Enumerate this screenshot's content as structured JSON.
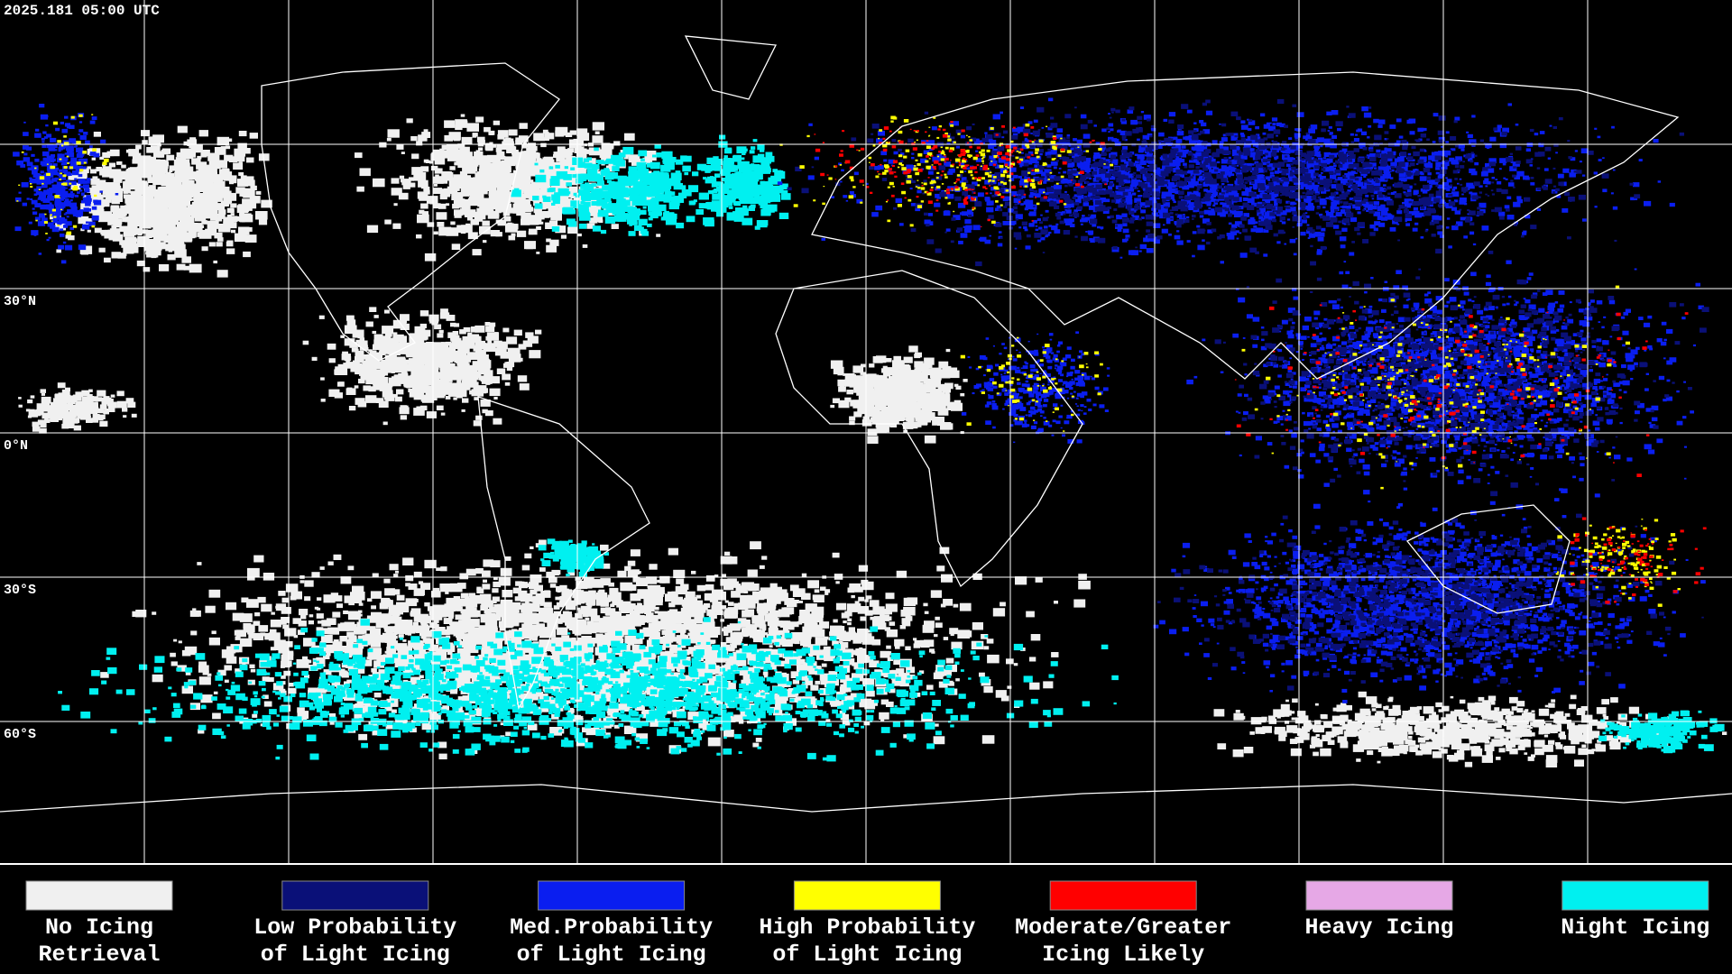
{
  "header": {
    "timestamp": "2025.181 05:00 UTC"
  },
  "map": {
    "lat_labels": [
      "30°N",
      "0°N",
      "30°S",
      "60°S"
    ]
  },
  "legend": {
    "items": [
      {
        "label": [
          "No Icing",
          "Retrieval"
        ],
        "color": "#f0f0f0"
      },
      {
        "label": [
          "Low Probability",
          "of Light Icing"
        ],
        "color": "#0a1078"
      },
      {
        "label": [
          "Med.Probability",
          "of Light Icing"
        ],
        "color": "#0a1ef0"
      },
      {
        "label": [
          "High Probability",
          "of Light Icing"
        ],
        "color": "#ffff00"
      },
      {
        "label": [
          "Moderate/Greater",
          "Icing Likely"
        ],
        "color": "#ff0000"
      },
      {
        "label": [
          "Heavy Icing",
          ""
        ],
        "color": "#e6a8e6"
      },
      {
        "label": [
          "Night Icing",
          ""
        ],
        "color": "#00f0f0"
      }
    ]
  }
}
